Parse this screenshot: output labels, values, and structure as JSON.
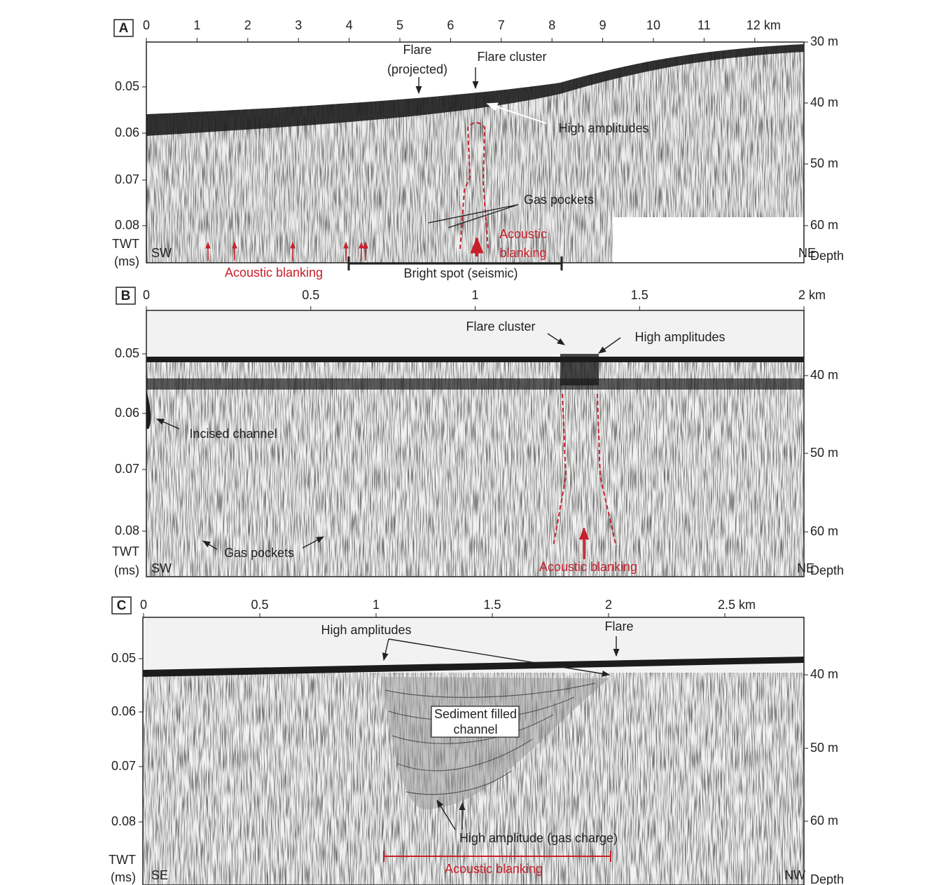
{
  "panels": [
    {
      "label": "A",
      "x_ticks": [
        "0",
        "1",
        "2",
        "3",
        "4",
        "5",
        "6",
        "7",
        "8",
        "9",
        "10",
        "11",
        "12 km"
      ],
      "y_ticks": [
        "0.05",
        "0.06",
        "0.07",
        "0.08"
      ],
      "y_title": [
        "TWT",
        "(ms)"
      ],
      "depth_ticks": [
        "30 m",
        "40 m",
        "50 m",
        "60 m"
      ],
      "depth_title": "Depth",
      "left_end": "SW",
      "right_end": "NE",
      "annotations": [
        "Flare",
        "(projected)",
        "Flare cluster",
        "High amplitudes",
        "Gas pockets",
        "Acoustic",
        "blanking",
        "Acoustic blanking",
        "Bright spot (seismic)"
      ]
    },
    {
      "label": "B",
      "x_ticks": [
        "0",
        "0.5",
        "1",
        "1.5",
        "2 km"
      ],
      "y_ticks": [
        "0.05",
        "0.06",
        "0.07",
        "0.08"
      ],
      "y_title": [
        "TWT",
        "(ms)"
      ],
      "depth_ticks": [
        "40 m",
        "50 m",
        "60 m"
      ],
      "depth_title": "Depth",
      "left_end": "SW",
      "right_end": "NE",
      "annotations": [
        "Flare cluster",
        "High amplitudes",
        "Incised channel",
        "Gas pockets",
        "Acoustic blanking"
      ]
    },
    {
      "label": "C",
      "x_ticks": [
        "0",
        "0.5",
        "1",
        "1.5",
        "2",
        "2.5 km"
      ],
      "y_ticks": [
        "0.05",
        "0.06",
        "0.07",
        "0.08"
      ],
      "y_title": [
        "TWT",
        "(ms)"
      ],
      "depth_ticks": [
        "40 m",
        "50 m",
        "60 m"
      ],
      "depth_title": "Depth",
      "left_end": "SE",
      "right_end": "NW",
      "annotations": [
        "High amplitudes",
        "Flare",
        "Sediment filled",
        "channel",
        "High amplitude (gas charge)",
        "Acoustic blanking"
      ]
    }
  ]
}
